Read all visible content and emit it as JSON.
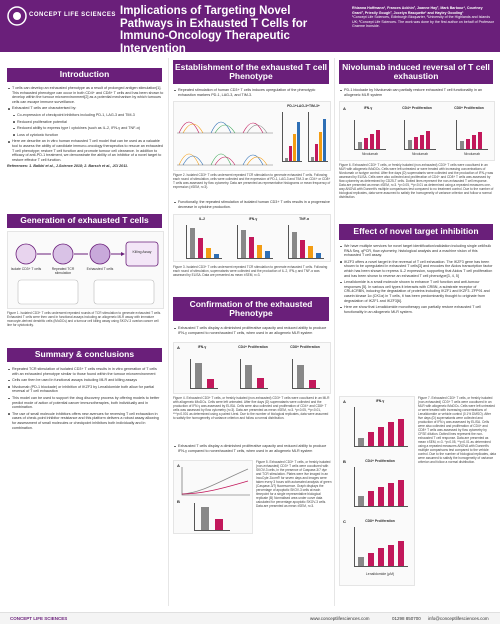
{
  "header": {
    "logo_text": "CONCEPT LIFE SCIENCES",
    "title": "Implications of Targeting Novel Pathways in Exhausted T Cells for Immuno-Oncology Therapeutic Intervention",
    "authors": "Rhianna Hoffmann¹, Frances Ackhin², Joanne Hay², Mark Barbour¹, Courtney Grant², Priestly Gough², Jocelyn Rasquette¹ and Hayley Gooding¹",
    "affiliations": "¹Concept Life Sciences, Edinburgh Bioquarter, ²University of the Highlands and Islands UK; ³Concept Life Sciences. The work was done by the first author on behalf of Professor Graeme Ironside."
  },
  "colors": {
    "brand": "#6a1f7a",
    "magenta": "#c2185b",
    "orange": "#f39c12",
    "blue": "#2e6fb5",
    "green": "#3aa655",
    "gray": "#888888"
  },
  "intro": {
    "heading": "Introduction",
    "b1": "T cells can develop an exhausted phenotype as a result of prolonged antigen stimulation[1]. This exhausted phenotype can occur in both CD4+ and CD8+ T cells and has been shown to develop within the tumour microenvironment[2] as a potential mechanism by which tumours cells can escape immune surveillance.",
    "b2": "Exhausted T cells are characterised by:",
    "s1": "Co-expression of checkpoint inhibitors including PD-1, LAG-3 and TIM-3",
    "s2": "Reduced proliferative potential",
    "s3": "Reduced ability to express type I cytokines (such as IL-2, IFN-γ and TNF-α)",
    "s4": "Loss of cytotoxic function",
    "b3": "Here we describe an in vitro human exhausted T cell model that can be used as a valuable tool to assess the ability of candidate immuno-oncology therapeutics to rescue an exhausted T cell phenotype; restore T cell function and promote tumour cell clearance. In addition to efficacy of anti-PD-1 treatment, we demonstrate the ability of an inhibitor of a novel target to restore effector T cell function.",
    "refs": "References: 1. Balkhi et al., J.Science 2018; 2. Barsch et al., JCI 2011."
  },
  "gen": {
    "heading": "Generation of exhausted T cells",
    "caption": "Figure 1. Isolated CD3+ T cells underwent repeated rounds of TCR stimulation to generate exhausted T cells. Exhausted T cells were then used in functional assays including an allogeneic MLR assay with immature monocyte-derived dendritic cells (iMoDCs) and a tumour cell killing assay using SKOV-3 ovarian cancer cell line for cytotoxicity.",
    "steps": [
      "Isolate CD3+ T cells",
      "Repeated TCR stimulation",
      "Exhausted T cells",
      "Killing Assay"
    ]
  },
  "summary": {
    "heading": "Summary & conclusions",
    "b1": "Repeated TCR stimulation of isolated CD3+ T cells results in in vitro generation of T cells with an exhausted phenotype similar to those found within the tumour microenvironment",
    "b2": "Cells can then be used in functional assays including MLR and killing assays",
    "b3": "Nivolumab (PD-1 blockade) or inhibition of IKZF3 by Lenalidomide both allow for partial reversal of T cell exhaustion",
    "b4": "This model can be used to support the drug discovery process by offering models to better predict mode of action of potential cancer immunotherapies, both individually and in combination.",
    "b5": "The use of small molecule inhibitors offers new avenues for reversing T cell exhaustion in cases of check-point inhibitor resistance and this platform delivers a robust assay allowing for assessment of small molecules or checkpoint inhibitors both individually and in combination."
  },
  "establish": {
    "heading": "Establishment of the exhausted T cell Phenotype",
    "b1": "Repeated stimulation of human CD3+ T cells induces upregulation of the phenotypic exhaustion markers PD-1, LAG-3, and TIM-3.",
    "fig2_title": "PD-1+LAG-3+TIM-3+",
    "fig2_legend": [
      "Unstimulated",
      "Stimulation 1",
      "Stimulation 2",
      "Stimulation 3"
    ],
    "fig2_caption": "Figure 2. Isolated CD3+ T cells underwent repeated TCR stimulation to generate exhausted T cells. Following each round of stimulation, cells were collected and the expression of PD-1, LAG-3 and TIM-3 on CD4+ or CD8+ T cells was assessed by flow cytometry. Data are presented as representative histograms or mean frequency of expression (±SEM, n=3).",
    "b2": "Functionally, the repeated stimulation of isolated human CD3+ T cells results in a progressive decrease in cytokine production.",
    "cyto_labels": [
      "IL-2",
      "IFN-γ",
      "TNF-α"
    ],
    "fig3_caption": "Figure 3. Isolated CD3+ T cells underwent repeated TCR stimulation to generate exhausted T cells. Following each round of stimulation, supernatants were collected and the production of IL-2, IFN-γ and TNF-α was assessed by ELISA. Data are presented as mean ±SEM, n=3."
  },
  "confirm": {
    "heading": "Confirmation of the exhausted Phenotype",
    "b1": "Exhausted T cells display a diminished proliferative capacity and reduced ability to produce IFN-γ compared to nonexhausted T cells, when used in an allogeneic MLR system",
    "panels": [
      "IFN-γ",
      "CD4+ Proliferation",
      "CD8+ Proliferation"
    ],
    "fig4_caption": "Figure 4. Exhausted CD3+ T cells, or freshly isolated (non-exhausted) CD3+ T cells were cocultured in an MLR with allogeneic iMoDCs. Cells were left untreated. After five days (D) supernatants were collected and the production of IFN-γ was assessed by ELISA. Cells were also collected and proliferation of CD4+ and CD8+ T cells was assessed by flow cytometry (n=3). Data are presented as mean ±SEM, n=3. *p<0.05, **p<0.01, ***p<0.001 as determined using a paired t-test. Due to the number of biological replicates, data were assumed to satisfy the homogeneity of variance criterion and follow a normal distribution.",
    "b2": "Exhausted T cells display a diminished proliferative capacity and reduced ability to produce IFN-γ compared to nonexhausted T cells, when used in an allogeneic MLR system",
    "fig5_caption": "Figure 5. Exhausted CD3+ T cells, or freshly isolated (non-exhausted) CD3+ T cells were cocultured with SKOV-3 cells, in the presence of Caspase-3/7 dye and TCR stimulation. Plates were live imaged in an IncuCyte Zoom® for seven days and images were taken every 3 hours with automated analysis of green (Caspase-3/7) fluorescence. Graph displays the percentage of apoptotic SKOV-3 cells at each timepoint for a single representative biological replicate (B) Normalised area under curve data calculated for percentage apoptotic SKOV-3 cells. Data are presented as mean ±SEM, n=3."
  },
  "nivo": {
    "heading": "Nivolumab induced reversal of T cell exhaustion",
    "b1": "PD-1 blockade by Nivolumab can partially restore exhausted T cell functionality in an allogeneic MLR system",
    "panels": [
      "IFN-γ",
      "CD4+ Proliferation",
      "CD8+ Proliferation"
    ],
    "x_labels": [
      "Isotype",
      "Nivolumab"
    ],
    "fig6_caption": "Figure 6. Exhausted CD3+ T cells, or freshly isolated (non-exhausted) CD3+ T cells were cocultured in an MLR with allogeneic iMoDCs. Cells were left untreated or were treated with increasing concentrations of Nivolumab or Isotype control. After five days (D) supernatants were collected and the production of IFN-γ was assessed by ELISA. Cells were also collected and proliferation of CD4+ and CD8+ T cells was assessed by flow cytometry as determined by CD25-T cells. Dotted lines represent the non-exhausted T cell response. Data are presented as mean ±SEM, n=3. *p<0.05, **p<0.01 as determined using a repeated measures one-way ANOVA with Dunnett's multiple comparisons test compared to no treatment control. Due to the number of biological replicates, data were assumed to satisfy the homogeneity of variance criterion and follow a normal distribution."
  },
  "novel": {
    "heading": "Effect of novel target inhibition",
    "b1": "We have multiple services for novel target identification/validation including single cell/bulk RNA Seq, qPCR, flow cytometry, histological analysis and a machine vision of this exhausted T cell assay.",
    "b2": "IKZF3 offers a novel target in the reversal of T cell exhaustion. The IKZF3 gene has been shown to be upregulated in exhausted T cells[3] and encodes the Aiolos transcription factor which has been shown to repress IL-2 expression, supporting that Aiolos T cell proliferation and has been shown to reverse an exhausted T cell phenotype[3, 4, 5]",
    "b3": "Lenalidomide is a small molecule shown to enhance T cell function and anti-tumour responses [5]. In various cell types it interacts with CRBN, a substrate receptor of CRL4CRBN, inducing the degradation of proteins including IKZF1 and IKZF3. ZFP91 and casein kinase 1α (CK1α) in T cells, it has been predominantly thought to originate from degradation of IKZF1 and IKZF3[6].",
    "b4": "Here we show that Lenalidomide monotherapy can partially restore exhausted T cell functionality in an allogeneic MLR system.",
    "panels": [
      "A",
      "B",
      "C"
    ],
    "panel_titles": [
      "IFN-γ",
      "CD4+ Proliferation",
      "CD8+ Proliferation"
    ],
    "x_label": "Lenalidomide (μM)",
    "fig7_caption": "Figure 7. Exhausted CD3+ T cells, or freshly isolated (non-exhausted) CD3+ T cells were cocultured in an MLR with allogeneic iMoDCs. Cells were left untreated or were treated with increasing concentrations of Lenalidomide or vehicle control (0.1% DMSO). After five days (D) supernatants were collected and production of IFN-γ was assessed by ELISA. Cells were also collected and proliferation of CD4+ and CD8+ T cells was assessed by flow cytometry by CFSE dilution. Dotted lines represent the non-exhausted T cell response. Data are presented as mean ±SEM, n=3. *p<0.05, **p<0.01 as determined using a repeated measures ANOVA with Dunnett's multiple comparisons test compared to the vehicle control. Due to the number of biological replicates, data were assumed to satisfy the homogeneity of variance criterion and follow a normal distribution."
  },
  "footer": {
    "web": "www.conceptlifesciences.com",
    "phone": "01298 850700",
    "email": "info@conceptlifesciences.com"
  }
}
